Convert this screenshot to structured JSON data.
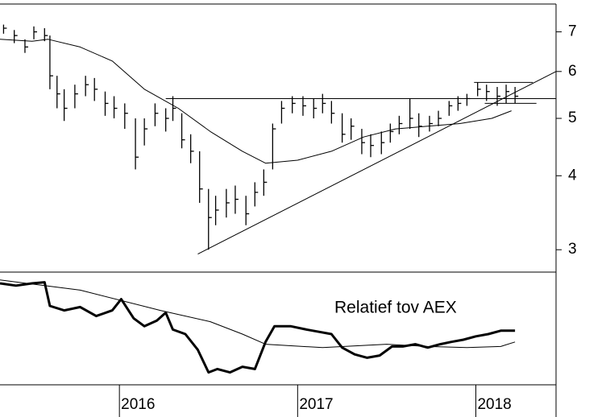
{
  "chart_data": [
    {
      "type": "hlc",
      "log_scale": true,
      "color": "#000000",
      "xlim": [
        2015.33,
        2018.45
      ],
      "ylim": [
        2.75,
        7.8
      ],
      "yticks": [
        3,
        4,
        5,
        6,
        7
      ],
      "x": [
        2015.35,
        2015.41,
        2015.47,
        2015.52,
        2015.58,
        2015.61,
        2015.65,
        2015.69,
        2015.75,
        2015.81,
        2015.86,
        2015.92,
        2015.97,
        2016.03,
        2016.09,
        2016.14,
        2016.2,
        2016.26,
        2016.3,
        2016.35,
        2016.4,
        2016.45,
        2016.5,
        2016.54,
        2016.6,
        2016.65,
        2016.71,
        2016.76,
        2016.81,
        2016.86,
        2016.91,
        2016.97,
        2017.03,
        2017.09,
        2017.14,
        2017.19,
        2017.25,
        2017.3,
        2017.36,
        2017.41,
        2017.47,
        2017.52,
        2017.57,
        2017.63,
        2017.68,
        2017.74,
        2017.79,
        2017.85,
        2017.9,
        2017.95,
        2018.01,
        2018.06,
        2018.12,
        2018.17,
        2018.22
      ],
      "high": [
        7.2,
        7.05,
        6.8,
        7.15,
        7.1,
        6.9,
        5.9,
        5.6,
        5.7,
        5.9,
        5.85,
        5.55,
        5.45,
        5.3,
        5.0,
        5.0,
        5.3,
        5.2,
        5.45,
        5.1,
        4.7,
        4.4,
        3.8,
        3.7,
        3.8,
        3.85,
        3.7,
        3.9,
        4.1,
        4.9,
        5.35,
        5.45,
        5.45,
        5.4,
        5.5,
        5.35,
        5.1,
        5.0,
        4.8,
        4.7,
        4.75,
        4.9,
        5.05,
        5.4,
        5.1,
        5.05,
        5.15,
        5.35,
        5.45,
        5.5,
        5.75,
        5.7,
        5.65,
        5.7,
        5.65
      ],
      "low": [
        6.95,
        6.7,
        6.45,
        6.8,
        6.75,
        5.6,
        5.2,
        4.95,
        5.2,
        5.45,
        5.35,
        5.05,
        5.0,
        4.8,
        4.1,
        4.5,
        4.85,
        4.75,
        4.95,
        4.45,
        4.2,
        3.6,
        3.0,
        3.3,
        3.4,
        3.45,
        3.3,
        3.55,
        3.7,
        4.1,
        4.9,
        5.1,
        5.05,
        5.0,
        5.1,
        4.9,
        4.55,
        4.6,
        4.35,
        4.3,
        4.35,
        4.55,
        4.7,
        4.8,
        4.65,
        4.75,
        4.85,
        5.05,
        5.15,
        5.25,
        5.45,
        5.35,
        5.25,
        5.3,
        5.3
      ],
      "close": [
        7.1,
        6.9,
        6.6,
        7.0,
        6.9,
        5.9,
        5.5,
        5.2,
        5.5,
        5.7,
        5.6,
        5.3,
        5.2,
        5.1,
        4.3,
        4.8,
        5.1,
        5.0,
        5.2,
        4.6,
        4.4,
        3.8,
        3.4,
        3.5,
        3.6,
        3.65,
        3.45,
        3.75,
        3.9,
        4.8,
        5.2,
        5.3,
        5.25,
        5.2,
        5.3,
        5.1,
        4.7,
        4.85,
        4.55,
        4.5,
        4.55,
        4.75,
        4.9,
        5.0,
        4.85,
        4.9,
        5.0,
        5.25,
        5.3,
        5.4,
        5.6,
        5.55,
        5.45,
        5.55,
        5.45
      ],
      "series": [
        {
          "color": "#000000",
          "x": [
            2015.33,
            2015.51,
            2015.6,
            2015.78,
            2015.96,
            2016.14,
            2016.33,
            2016.51,
            2016.69,
            2016.82,
            2017.0,
            2017.19,
            2017.37,
            2017.55,
            2017.73,
            2017.91,
            2018.09,
            2018.2
          ],
          "values": [
            6.8,
            6.75,
            6.8,
            6.6,
            6.25,
            5.6,
            5.2,
            4.75,
            4.4,
            4.2,
            4.25,
            4.4,
            4.65,
            4.8,
            4.85,
            4.9,
            5.0,
            5.15
          ]
        }
      ],
      "lines": [
        {
          "x": [
            2016.44,
            2018.45
          ],
          "y": [
            2.95,
            6.0
          ]
        },
        {
          "x": [
            2016.26,
            2018.45
          ],
          "y": [
            5.4,
            5.4
          ]
        },
        {
          "x": [
            2017.99,
            2018.32
          ],
          "y": [
            5.75,
            5.75
          ]
        },
        {
          "x": [
            2018.05,
            2018.34
          ],
          "y": [
            5.3,
            5.3
          ]
        }
      ]
    },
    {
      "type": "line",
      "annotation": "Relatief tov AEX",
      "xlim": [
        2015.33,
        2018.45
      ],
      "ylim": [
        0,
        100
      ],
      "xticks": [
        2016,
        2017,
        2018
      ],
      "series": [
        {
          "color": "#000000",
          "width": 3,
          "x": [
            2015.33,
            2015.42,
            2015.51,
            2015.58,
            2015.61,
            2015.69,
            2015.78,
            2015.87,
            2015.96,
            2016.01,
            2016.08,
            2016.14,
            2016.21,
            2016.26,
            2016.3,
            2016.37,
            2016.44,
            2016.5,
            2016.55,
            2016.62,
            2016.69,
            2016.76,
            2016.82,
            2016.87,
            2016.96,
            2017.05,
            2017.12,
            2017.19,
            2017.25,
            2017.32,
            2017.39,
            2017.46,
            2017.53,
            2017.59,
            2017.66,
            2017.73,
            2017.8,
            2017.86,
            2017.93,
            2018.0,
            2018.07,
            2018.14,
            2018.22
          ],
          "values": [
            90,
            88,
            90,
            91,
            70,
            66,
            69,
            61,
            66,
            76,
            59,
            52,
            57,
            64,
            49,
            45,
            31,
            11,
            14,
            11,
            16,
            14,
            38,
            52,
            52,
            49,
            47,
            45,
            33,
            27,
            24,
            26,
            34,
            34,
            36,
            33,
            36,
            38,
            40,
            43,
            45,
            48,
            48
          ]
        },
        {
          "color": "#000000",
          "width": 1,
          "x": [
            2015.33,
            2015.78,
            2016.23,
            2016.51,
            2016.69,
            2016.82,
            2017.14,
            2017.5,
            2017.73,
            2017.95,
            2018.14,
            2018.22
          ],
          "values": [
            93,
            84,
            66,
            56,
            45,
            36,
            33,
            36,
            34,
            33,
            34,
            38
          ]
        }
      ]
    }
  ]
}
